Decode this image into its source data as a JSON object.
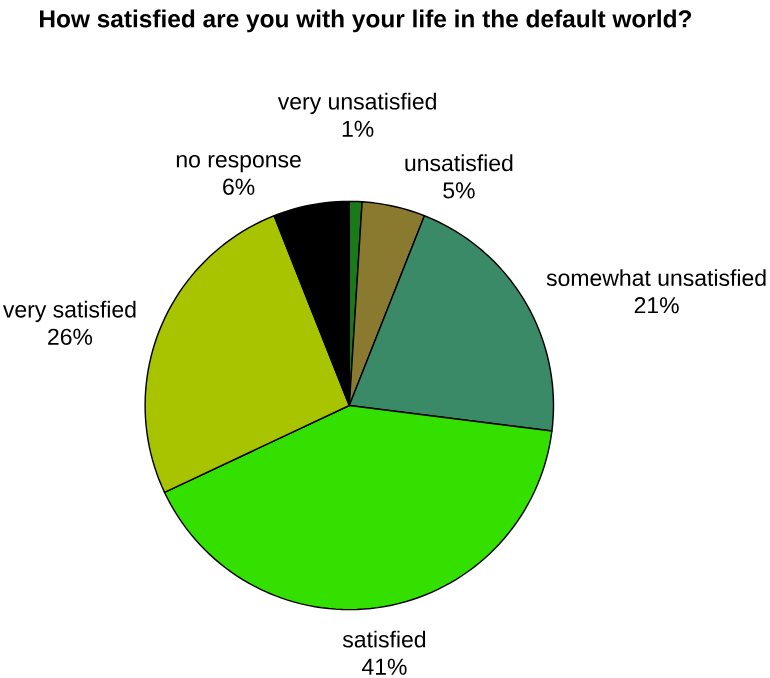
{
  "chart_data": {
    "type": "pie",
    "title": "How satisfied are you with your life in the default world?",
    "categories": [
      "very unsatisfied",
      "unsatisfied",
      "somewhat unsatisfied",
      "satisfied",
      "very satisfied",
      "no response"
    ],
    "values": [
      1,
      5,
      21,
      41,
      26,
      6
    ],
    "value_labels": [
      "1%",
      "5%",
      "21%",
      "41%",
      "26%",
      "6%"
    ],
    "colors": [
      "#1a7a1a",
      "#8a7a30",
      "#3a8a68",
      "#33e000",
      "#a8c400",
      "#000000"
    ]
  }
}
